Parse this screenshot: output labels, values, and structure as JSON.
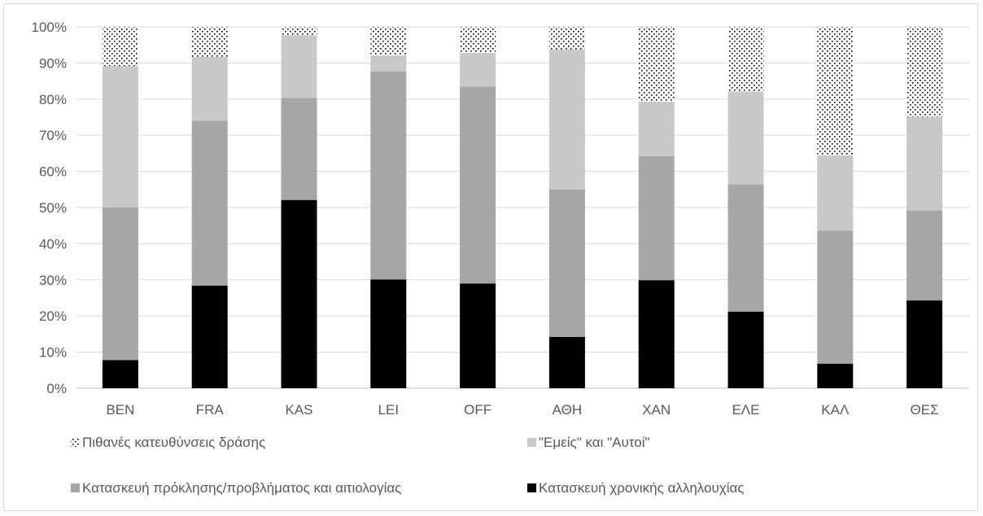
{
  "chart_data": {
    "type": "bar",
    "stacked": true,
    "percent": true,
    "categories": [
      "BEN",
      "FRA",
      "KAS",
      "LEI",
      "OFF",
      "ΑΘΗ",
      "ΧΑΝ",
      "ΕΛΕ",
      "ΚΑΛ",
      "ΘΕΣ"
    ],
    "series": [
      {
        "name": "Κατασκευή χρονικής αλληλουχίας",
        "color": "#000000",
        "pattern": "solid",
        "values": [
          7.8,
          28.4,
          52.1,
          30.1,
          29.0,
          14.2,
          29.9,
          21.2,
          6.8,
          24.3
        ]
      },
      {
        "name": "Κατασκευή πρόκλησης/προβλήματος και αιτιολογίας",
        "color": "#a6a6a6",
        "pattern": "solid",
        "values": [
          42.2,
          45.6,
          28.2,
          57.6,
          54.5,
          40.8,
          34.3,
          35.2,
          36.8,
          24.9
        ]
      },
      {
        "name": "\"Εμείς\" και \"Αυτοί\"",
        "color": "#c8c8c8",
        "pattern": "solid",
        "values": [
          39.2,
          17.7,
          17.4,
          4.4,
          9.3,
          38.8,
          15.1,
          25.7,
          20.8,
          25.9
        ]
      },
      {
        "name": "Πιθανές κατευθύνσεις δράσης",
        "color": "#000000",
        "pattern": "dots",
        "values": [
          10.8,
          8.3,
          2.3,
          7.9,
          7.2,
          6.2,
          20.7,
          17.9,
          35.6,
          24.9
        ]
      }
    ],
    "ylim": [
      0,
      100
    ],
    "yticks": [
      "0%",
      "10%",
      "20%",
      "30%",
      "40%",
      "50%",
      "60%",
      "70%",
      "80%",
      "90%",
      "100%"
    ],
    "grid": true,
    "legend_position": "bottom",
    "legend_order": [
      3,
      2,
      1,
      0
    ]
  }
}
